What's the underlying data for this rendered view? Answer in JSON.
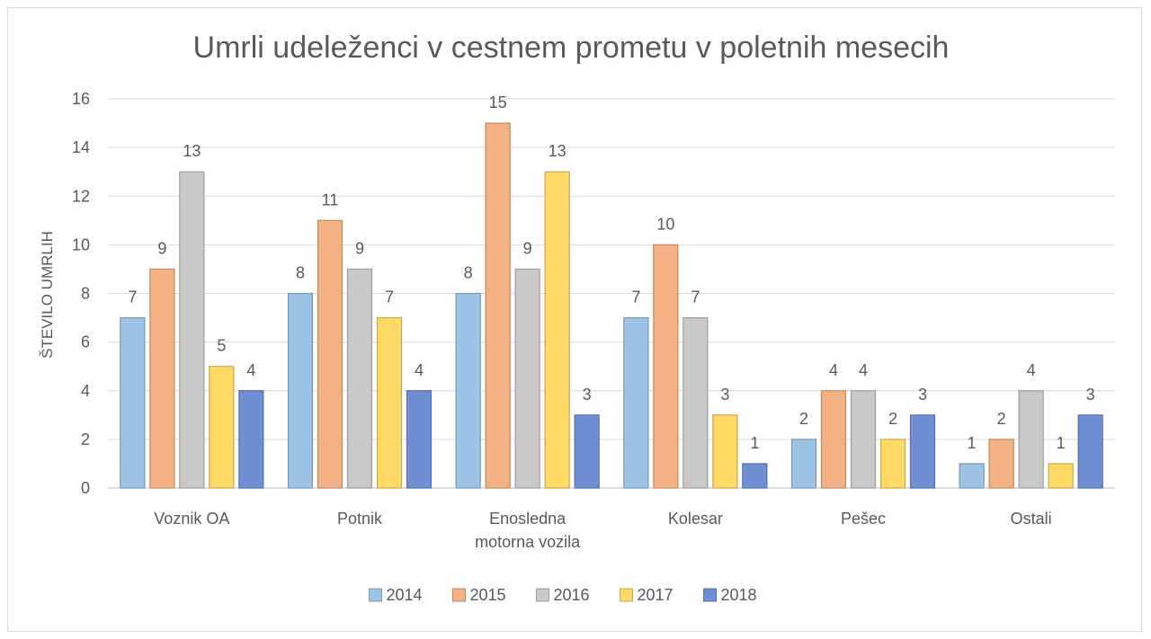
{
  "chart_data": {
    "type": "bar",
    "title": "Umrli udeleženci v cestnem prometu v poletnih mesecih",
    "xlabel": "",
    "ylabel": "ŠTEVILO UMRLIH",
    "ylim": [
      0,
      16
    ],
    "yticks": [
      0,
      2,
      4,
      6,
      8,
      10,
      12,
      14,
      16
    ],
    "grid": true,
    "legend_position": "bottom",
    "categories": [
      [
        "Voznik OA"
      ],
      [
        "Potnik"
      ],
      [
        "Enosledna",
        "motorna vozila"
      ],
      [
        "Kolesar"
      ],
      [
        "Pešec"
      ],
      [
        "Ostali"
      ]
    ],
    "series": [
      {
        "name": "2014",
        "color": "#9dc3e6",
        "values": [
          7,
          8,
          8,
          7,
          2,
          1
        ]
      },
      {
        "name": "2015",
        "color": "#f4b183",
        "values": [
          9,
          11,
          15,
          10,
          4,
          2
        ]
      },
      {
        "name": "2016",
        "color": "#c9c9c9",
        "values": [
          13,
          9,
          9,
          7,
          4,
          4
        ]
      },
      {
        "name": "2017",
        "color": "#ffd966",
        "values": [
          5,
          7,
          13,
          3,
          2,
          1
        ]
      },
      {
        "name": "2018",
        "color": "#6f8fd4",
        "values": [
          4,
          4,
          3,
          1,
          3,
          3
        ]
      }
    ]
  }
}
